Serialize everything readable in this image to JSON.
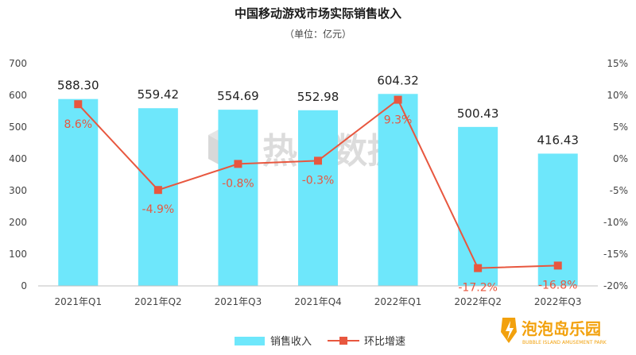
{
  "chart_data": {
    "type": "bar",
    "title": "中国移动游戏市场实际销售收入",
    "subtitle": "（单位：亿元）",
    "categories": [
      "2021年Q1",
      "2021年Q2",
      "2021年Q3",
      "2021年Q4",
      "2022年Q1",
      "2022年Q2",
      "2022年Q3"
    ],
    "series": [
      {
        "name": "销售收入",
        "type": "bar",
        "axis": "left",
        "color": "#6ee7fb",
        "values": [
          588.3,
          559.42,
          554.69,
          552.98,
          604.32,
          500.43,
          416.43
        ],
        "labels": [
          "588.30",
          "559.42",
          "554.69",
          "552.98",
          "604.32",
          "500.43",
          "416.43"
        ]
      },
      {
        "name": "环比增速",
        "type": "line",
        "axis": "right",
        "color": "#e8573f",
        "values": [
          8.6,
          -4.9,
          -0.8,
          -0.3,
          9.3,
          -17.2,
          -16.8
        ],
        "labels": [
          "8.6%",
          "-4.9%",
          "-0.8%",
          "-0.3%",
          "9.3%",
          "-17.2%",
          "-16.8%"
        ]
      }
    ],
    "ylim_left": [
      0,
      700
    ],
    "yticks_left": [
      0,
      100,
      200,
      300,
      400,
      500,
      600,
      700
    ],
    "ylim_right": [
      -20,
      15
    ],
    "yticks_right": [
      "15%",
      "10%",
      "5%",
      "0%",
      "-5%",
      "-10%",
      "-15%",
      "-20%"
    ],
    "grid": false,
    "legend": "bottom-center"
  },
  "watermark": {
    "text": "热云数据",
    "icon": "cube-logo-icon"
  },
  "brand": {
    "name": "泡泡岛乐园",
    "tagline": "BUBBLE ISLAND AMUSEMENT PARK",
    "icon": "lightning-shield-icon",
    "color": "#f2a10d"
  }
}
